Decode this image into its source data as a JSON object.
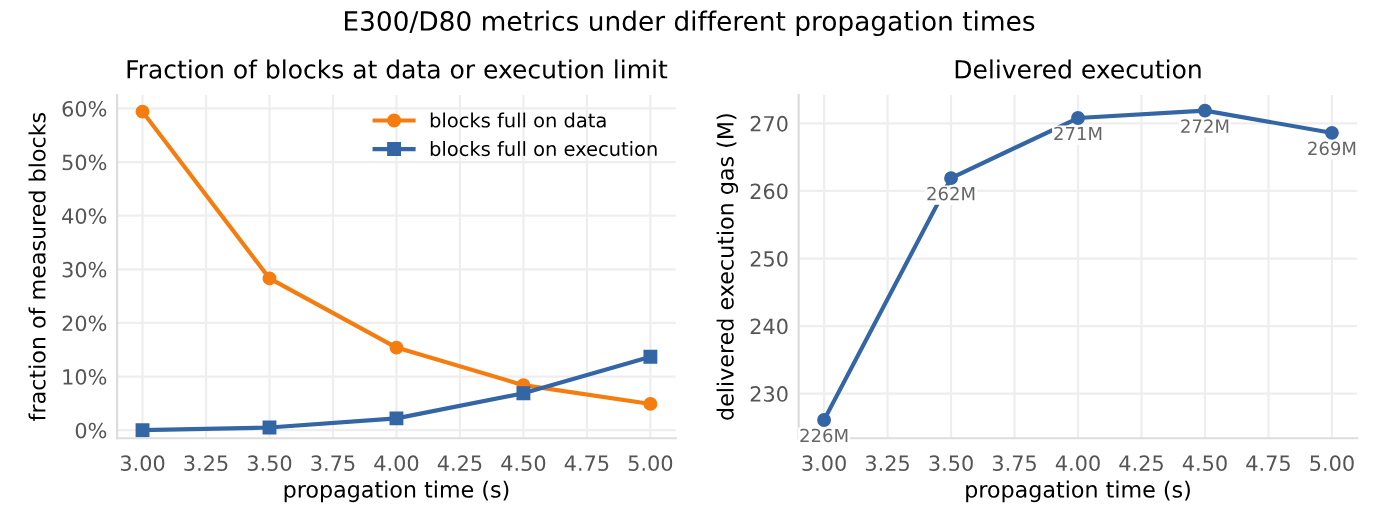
{
  "chart_data": [
    {
      "type": "line",
      "title": "Fraction of blocks at data or execution limit",
      "xlabel": "propagation time (s)",
      "ylabel": "fraction of measured blocks",
      "x": [
        3.0,
        3.5,
        4.0,
        4.5,
        5.0
      ],
      "series": [
        {
          "name": "blocks full on data",
          "color": "#f57c0e",
          "marker": "circle",
          "values": [
            59.4,
            28.3,
            15.4,
            8.4,
            4.9
          ]
        },
        {
          "name": "blocks full on execution",
          "color": "#3465a4",
          "marker": "square",
          "values": [
            0.0,
            0.5,
            2.2,
            6.9,
            13.7
          ]
        }
      ],
      "xlim": [
        2.9,
        5.1
      ],
      "xticks": [
        {
          "value": 3.0,
          "label": "3.00"
        },
        {
          "value": 3.25,
          "label": "3.25"
        },
        {
          "value": 3.5,
          "label": "3.50"
        },
        {
          "value": 3.75,
          "label": "3.75"
        },
        {
          "value": 4.0,
          "label": "4.00"
        },
        {
          "value": 4.25,
          "label": "4.25"
        },
        {
          "value": 4.5,
          "label": "4.50"
        },
        {
          "value": 4.75,
          "label": "4.75"
        },
        {
          "value": 5.0,
          "label": "5.00"
        }
      ],
      "ylim": [
        -1.5,
        62.5
      ],
      "yticks": [
        {
          "value": 0,
          "label": "0%"
        },
        {
          "value": 10,
          "label": "10%"
        },
        {
          "value": 20,
          "label": "20%"
        },
        {
          "value": 30,
          "label": "30%"
        },
        {
          "value": 40,
          "label": "40%"
        },
        {
          "value": 50,
          "label": "50%"
        },
        {
          "value": 60,
          "label": "60%"
        }
      ],
      "grid": true,
      "legend": "top right",
      "annotations": [
        "E300/D80 metrics under different propagation times"
      ]
    },
    {
      "type": "line",
      "title": "Delivered execution",
      "xlabel": "propagation time (s)",
      "ylabel": "delivered execution gas (M)",
      "x": [
        3.0,
        3.5,
        4.0,
        4.5,
        5.0
      ],
      "series": [
        {
          "color": "#3465a4",
          "marker": "circle",
          "values": [
            226.1,
            261.9,
            270.8,
            271.9,
            268.6
          ],
          "value_labels": [
            "226M",
            "262M",
            "271M",
            "272M",
            "269M"
          ]
        }
      ],
      "xlim": [
        2.9,
        5.1
      ],
      "xticks": [
        {
          "value": 3.0,
          "label": "3.00"
        },
        {
          "value": 3.25,
          "label": "3.25"
        },
        {
          "value": 3.5,
          "label": "3.50"
        },
        {
          "value": 3.75,
          "label": "3.75"
        },
        {
          "value": 4.0,
          "label": "4.00"
        },
        {
          "value": 4.25,
          "label": "4.25"
        },
        {
          "value": 4.5,
          "label": "4.50"
        },
        {
          "value": 4.75,
          "label": "4.75"
        },
        {
          "value": 5.0,
          "label": "5.00"
        }
      ],
      "ylim": [
        223.4,
        274.2
      ],
      "yticks": [
        230,
        240,
        250,
        260,
        270
      ],
      "grid": true,
      "legend": false
    }
  ]
}
